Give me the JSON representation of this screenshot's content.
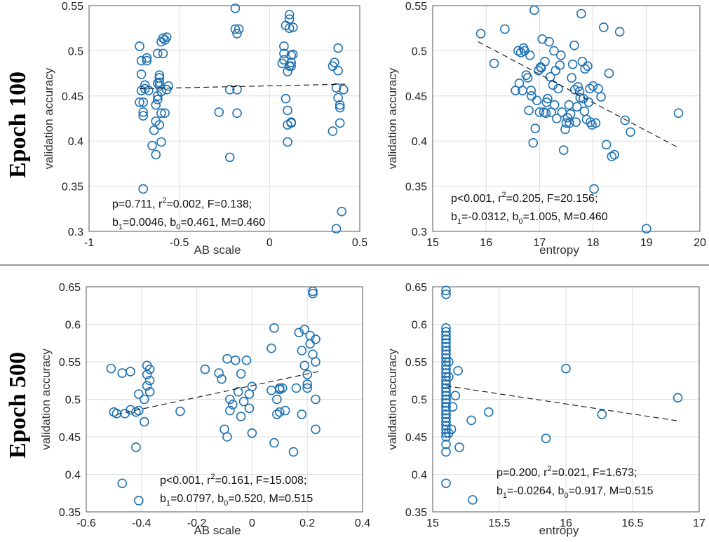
{
  "row_labels": [
    "Epoch 100",
    "Epoch 500"
  ],
  "chart_data": [
    {
      "type": "scatter",
      "xlabel": "AB scale",
      "ylabel": "validation accuracy",
      "xlim": [
        -1,
        0.5
      ],
      "ylim": [
        0.3,
        0.55
      ],
      "xticks": [
        "-1",
        "-0.5",
        "0",
        "0.5"
      ],
      "yticks": [
        "0.3",
        "0.35",
        "0.4",
        "0.45",
        "0.5",
        "0.55"
      ],
      "grid": true,
      "fit_line": {
        "x": [
          -0.72,
          0.42
        ],
        "y": [
          0.458,
          0.463
        ]
      },
      "stats": {
        "line1_prefix": "p=0.711, r",
        "line1_sup": "2",
        "line1_suffix": "=0.002, F=0.138;",
        "b": "b",
        "s1": "1",
        "m1": "=0.0046, ",
        "s0": "0",
        "m0": "=0.461, M=0.460"
      },
      "x": [
        -0.72,
        -0.72,
        -0.71,
        -0.71,
        -0.71,
        -0.7,
        -0.7,
        -0.7,
        -0.7,
        -0.69,
        -0.69,
        -0.68,
        -0.68,
        -0.67,
        -0.65,
        -0.64,
        -0.63,
        -0.63,
        -0.63,
        -0.62,
        -0.62,
        -0.62,
        -0.62,
        -0.61,
        -0.61,
        -0.61,
        -0.61,
        -0.61,
        -0.6,
        -0.6,
        -0.6,
        -0.6,
        -0.59,
        -0.59,
        -0.58,
        -0.58,
        -0.57,
        -0.57,
        -0.56,
        -0.28,
        -0.22,
        -0.22,
        -0.19,
        -0.19,
        -0.18,
        -0.18,
        -0.18,
        -0.17,
        0.07,
        0.08,
        0.08,
        0.08,
        0.09,
        0.09,
        0.1,
        0.1,
        0.1,
        0.1,
        0.11,
        0.11,
        0.11,
        0.11,
        0.12,
        0.12,
        0.12,
        0.12,
        0.12,
        0.13,
        0.13,
        0.35,
        0.35,
        0.36,
        0.37,
        0.37,
        0.38,
        0.38,
        0.38,
        0.39,
        0.39,
        0.39,
        0.4,
        0.41
      ],
      "y": [
        0.443,
        0.505,
        0.489,
        0.474,
        0.456,
        0.443,
        0.432,
        0.428,
        0.347,
        0.462,
        0.458,
        0.489,
        0.492,
        0.456,
        0.395,
        0.412,
        0.422,
        0.44,
        0.385,
        0.446,
        0.45,
        0.464,
        0.497,
        0.418,
        0.461,
        0.465,
        0.47,
        0.473,
        0.399,
        0.431,
        0.455,
        0.51,
        0.497,
        0.514,
        0.512,
        0.431,
        0.515,
        0.457,
        0.461,
        0.432,
        0.382,
        0.457,
        0.547,
        0.524,
        0.457,
        0.431,
        0.519,
        0.524,
        0.486,
        0.49,
        0.497,
        0.505,
        0.528,
        0.447,
        0.399,
        0.418,
        0.434,
        0.477,
        0.483,
        0.525,
        0.54,
        0.535,
        0.42,
        0.421,
        0.483,
        0.487,
        0.495,
        0.496,
        0.526,
        0.411,
        0.483,
        0.487,
        0.303,
        0.459,
        0.503,
        0.448,
        0.478,
        0.437,
        0.44,
        0.42,
        0.322,
        0.457
      ]
    },
    {
      "type": "scatter",
      "xlabel": "entropy",
      "ylabel": "validation accuracy",
      "xlim": [
        15,
        20
      ],
      "ylim": [
        0.3,
        0.55
      ],
      "xticks": [
        "15",
        "16",
        "17",
        "18",
        "19",
        "20"
      ],
      "yticks": [
        "0.3",
        "0.35",
        "0.4",
        "0.45",
        "0.5",
        "0.55"
      ],
      "grid": true,
      "fit_line": {
        "x": [
          15.85,
          19.62
        ],
        "y": [
          0.51,
          0.392
        ]
      },
      "stats": {
        "line1_prefix": "p<0.001, r",
        "line1_sup": "2",
        "line1_suffix": "=0.205, F=20.156;",
        "b": "b",
        "s1": "1",
        "m1": "=-0.0312, ",
        "s0": "0",
        "m0": "=1.005, M=0.460"
      },
      "x": [
        15.9,
        16.15,
        16.35,
        16.55,
        16.6,
        16.65,
        16.7,
        16.75,
        16.78,
        16.8,
        16.82,
        16.85,
        16.88,
        16.9,
        16.92,
        16.95,
        16.98,
        17.0,
        17.02,
        17.05,
        17.08,
        17.1,
        17.12,
        17.15,
        17.18,
        17.2,
        17.22,
        17.25,
        17.28,
        17.3,
        17.32,
        17.35,
        17.38,
        17.4,
        17.45,
        17.48,
        17.5,
        17.52,
        17.55,
        17.58,
        17.6,
        17.62,
        17.65,
        17.68,
        17.7,
        17.72,
        17.75,
        17.78,
        17.8,
        17.82,
        17.85,
        17.88,
        17.9,
        17.92,
        17.95,
        17.98,
        18.0,
        18.02,
        18.05,
        18.1,
        18.15,
        18.2,
        18.25,
        18.3,
        18.35,
        18.4,
        18.5,
        18.6,
        18.7,
        19.0,
        19.6,
        16.62,
        16.68,
        16.72,
        16.84,
        17.03,
        17.13,
        17.27,
        17.42,
        17.56,
        17.66,
        17.76,
        17.84,
        17.94
      ],
      "y": [
        0.519,
        0.486,
        0.524,
        0.456,
        0.5,
        0.498,
        0.503,
        0.473,
        0.47,
        0.434,
        0.495,
        0.45,
        0.398,
        0.545,
        0.414,
        0.445,
        0.478,
        0.432,
        0.482,
        0.513,
        0.432,
        0.488,
        0.431,
        0.447,
        0.51,
        0.471,
        0.432,
        0.462,
        0.44,
        0.478,
        0.425,
        0.458,
        0.484,
        0.495,
        0.39,
        0.413,
        0.42,
        0.426,
        0.44,
        0.43,
        0.47,
        0.485,
        0.506,
        0.421,
        0.438,
        0.46,
        0.455,
        0.541,
        0.488,
        0.447,
        0.48,
        0.424,
        0.483,
        0.443,
        0.421,
        0.418,
        0.461,
        0.347,
        0.42,
        0.458,
        0.449,
        0.526,
        0.396,
        0.475,
        0.383,
        0.385,
        0.521,
        0.423,
        0.41,
        0.303,
        0.431,
        0.464,
        0.456,
        0.5,
        0.456,
        0.481,
        0.443,
        0.5,
        0.432,
        0.42,
        0.457,
        0.448,
        0.433,
        0.458
      ]
    },
    {
      "type": "scatter",
      "xlabel": "AB scale",
      "ylabel": "validation accuracy",
      "xlim": [
        -0.6,
        0.4
      ],
      "ylim": [
        0.35,
        0.65
      ],
      "xticks": [
        "-0.6",
        "-0.4",
        "-0.2",
        "0",
        "0.2",
        "0.4"
      ],
      "yticks": [
        "0.35",
        "0.4",
        "0.45",
        "0.5",
        "0.55",
        "0.6",
        "0.65"
      ],
      "grid": true,
      "fit_line": {
        "x": [
          -0.49,
          0.24
        ],
        "y": [
          0.48,
          0.537
        ]
      },
      "stats": {
        "line1_prefix": "p<0.001, r",
        "line1_sup": "2",
        "line1_suffix": "=0.161, F=15.008;",
        "b": "b",
        "s1": "1",
        "m1": "=0.0797, ",
        "s0": "0",
        "m0": "=0.520, M=0.515"
      },
      "x": [
        -0.51,
        -0.5,
        -0.49,
        -0.47,
        -0.46,
        -0.44,
        -0.44,
        -0.42,
        -0.42,
        -0.41,
        -0.41,
        -0.39,
        -0.39,
        -0.38,
        -0.38,
        -0.38,
        -0.37,
        -0.37,
        -0.37,
        -0.26,
        -0.17,
        -0.12,
        -0.11,
        -0.1,
        -0.09,
        -0.09,
        -0.08,
        -0.08,
        -0.07,
        -0.06,
        -0.05,
        -0.04,
        -0.04,
        -0.03,
        -0.02,
        -0.01,
        -0.01,
        0.0,
        0.0,
        0.07,
        0.07,
        0.08,
        0.08,
        0.09,
        0.09,
        0.1,
        0.1,
        0.11,
        0.12,
        0.15,
        0.16,
        0.17,
        0.18,
        0.18,
        0.19,
        0.19,
        0.2,
        0.2,
        0.2,
        0.21,
        0.21,
        0.22,
        0.22,
        0.22,
        0.23,
        0.23,
        0.23,
        0.23,
        -0.47,
        -0.41,
        0.1
      ],
      "y": [
        0.541,
        0.483,
        0.481,
        0.535,
        0.481,
        0.486,
        0.537,
        0.436,
        0.483,
        0.365,
        0.507,
        0.47,
        0.5,
        0.518,
        0.533,
        0.545,
        0.51,
        0.525,
        0.54,
        0.484,
        0.54,
        0.535,
        0.527,
        0.46,
        0.554,
        0.45,
        0.485,
        0.5,
        0.493,
        0.552,
        0.51,
        0.534,
        0.477,
        0.497,
        0.552,
        0.488,
        0.507,
        0.517,
        0.455,
        0.568,
        0.512,
        0.595,
        0.442,
        0.48,
        0.5,
        0.483,
        0.515,
        0.515,
        0.485,
        0.43,
        0.515,
        0.589,
        0.565,
        0.48,
        0.593,
        0.545,
        0.533,
        0.52,
        0.515,
        0.574,
        0.585,
        0.641,
        0.644,
        0.56,
        0.55,
        0.5,
        0.46,
        0.58,
        0.388,
        0.485,
        0.513
      ]
    },
    {
      "type": "scatter",
      "xlabel": "entropy",
      "ylabel": "validation accuracy",
      "xlim": [
        15,
        17
      ],
      "ylim": [
        0.35,
        0.65
      ],
      "xticks": [
        "15",
        "15.5",
        "16",
        "16.5",
        "17"
      ],
      "yticks": [
        "0.35",
        "0.4",
        "0.45",
        "0.5",
        "0.55",
        "0.6",
        "0.65"
      ],
      "grid": true,
      "fit_line": {
        "x": [
          15.1,
          16.85
        ],
        "y": [
          0.518,
          0.471
        ]
      },
      "stats": {
        "line1_prefix": "p=0.200, r",
        "line1_sup": "2",
        "line1_suffix": "=0.021, F=1.673;",
        "b": "b",
        "s1": "1",
        "m1": "=-0.0264, ",
        "s0": "0",
        "m0": "=0.917, M=0.515"
      },
      "x": [
        15.1,
        15.1,
        15.1,
        15.1,
        15.1,
        15.1,
        15.1,
        15.1,
        15.1,
        15.1,
        15.1,
        15.1,
        15.1,
        15.1,
        15.1,
        15.1,
        15.1,
        15.1,
        15.1,
        15.1,
        15.1,
        15.1,
        15.1,
        15.1,
        15.1,
        15.1,
        15.1,
        15.1,
        15.1,
        15.1,
        15.1,
        15.1,
        15.1,
        15.1,
        15.1,
        15.1,
        15.1,
        15.1,
        15.1,
        15.1,
        15.1,
        15.12,
        15.12,
        15.12,
        15.14,
        15.15,
        15.17,
        15.19,
        15.2,
        15.29,
        15.3,
        15.42,
        15.85,
        16.0,
        16.27,
        16.84
      ],
      "y": [
        0.645,
        0.64,
        0.595,
        0.59,
        0.585,
        0.58,
        0.575,
        0.57,
        0.565,
        0.56,
        0.555,
        0.55,
        0.545,
        0.54,
        0.535,
        0.53,
        0.525,
        0.52,
        0.515,
        0.51,
        0.505,
        0.5,
        0.495,
        0.49,
        0.485,
        0.48,
        0.475,
        0.47,
        0.465,
        0.46,
        0.455,
        0.45,
        0.44,
        0.43,
        0.388,
        0.52,
        0.51,
        0.5,
        0.49,
        0.48,
        0.47,
        0.55,
        0.53,
        0.455,
        0.46,
        0.49,
        0.505,
        0.538,
        0.436,
        0.472,
        0.366,
        0.483,
        0.448,
        0.541,
        0.48,
        0.502
      ]
    }
  ]
}
